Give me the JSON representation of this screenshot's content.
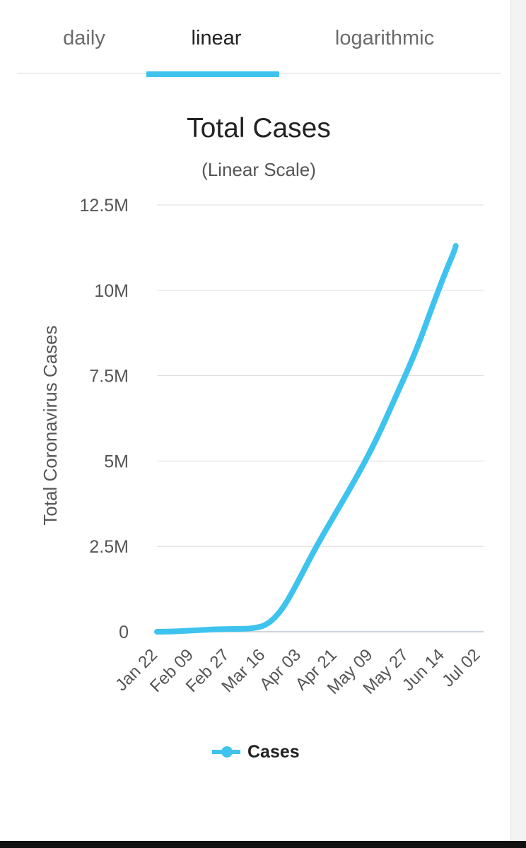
{
  "tabs": [
    {
      "label": "daily",
      "active": false
    },
    {
      "label": "linear",
      "active": true
    },
    {
      "label": "logarithmic",
      "active": false
    }
  ],
  "accent_color": "#3ec3ef",
  "chart_data": {
    "type": "line",
    "title": "Total Cases",
    "subtitle": "(Linear Scale)",
    "xlabel": "",
    "ylabel": "Total Coronavirus Cases",
    "ylim": [
      0,
      12500000
    ],
    "y_ticks": [
      {
        "value": 0,
        "label": "0"
      },
      {
        "value": 2500000,
        "label": "2.5M"
      },
      {
        "value": 5000000,
        "label": "5M"
      },
      {
        "value": 7500000,
        "label": "7.5M"
      },
      {
        "value": 10000000,
        "label": "10M"
      },
      {
        "value": 12500000,
        "label": "12.5M"
      }
    ],
    "x_tick_labels": [
      "Jan 22",
      "Feb 09",
      "Feb 27",
      "Mar 16",
      "Apr 03",
      "Apr 21",
      "May 09",
      "May 27",
      "Jun 14",
      "Jul 02"
    ],
    "x_day_range": [
      0,
      164
    ],
    "legend": [
      {
        "name": "Cases",
        "color": "#3ec3ef"
      }
    ],
    "series": [
      {
        "name": "Cases",
        "color": "#3ec3ef",
        "points": [
          {
            "day": 0,
            "value": 555
          },
          {
            "day": 10,
            "value": 12000
          },
          {
            "day": 18,
            "value": 37000
          },
          {
            "day": 28,
            "value": 68000
          },
          {
            "day": 36,
            "value": 79000
          },
          {
            "day": 46,
            "value": 90000
          },
          {
            "day": 50,
            "value": 120000
          },
          {
            "day": 54,
            "value": 180000
          },
          {
            "day": 58,
            "value": 340000
          },
          {
            "day": 62,
            "value": 600000
          },
          {
            "day": 66,
            "value": 950000
          },
          {
            "day": 72,
            "value": 1600000
          },
          {
            "day": 80,
            "value": 2500000
          },
          {
            "day": 90,
            "value": 3500000
          },
          {
            "day": 100,
            "value": 4500000
          },
          {
            "day": 110,
            "value": 5600000
          },
          {
            "day": 120,
            "value": 6900000
          },
          {
            "day": 130,
            "value": 8200000
          },
          {
            "day": 140,
            "value": 9800000
          },
          {
            "day": 146,
            "value": 10700000
          },
          {
            "day": 149,
            "value": 11100000
          },
          {
            "day": 150,
            "value": 11300000
          }
        ]
      }
    ]
  }
}
